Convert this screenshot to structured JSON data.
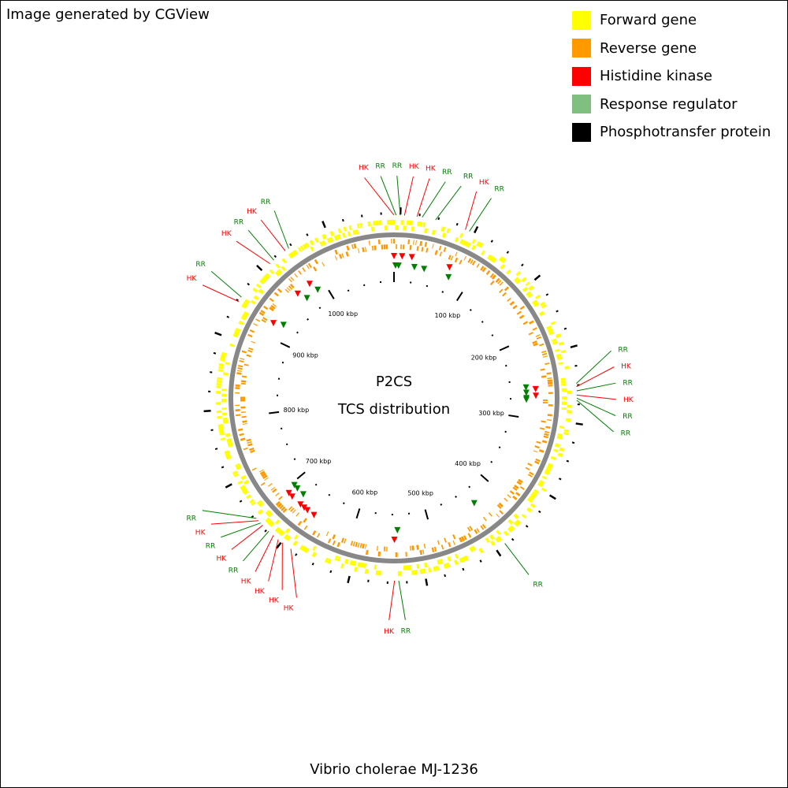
{
  "header": {
    "credit": "Image generated by CGView"
  },
  "legend": [
    {
      "label": "Forward gene",
      "color": "#ffff00"
    },
    {
      "label": "Reverse gene",
      "color": "#ff9900"
    },
    {
      "label": "Histidine kinase",
      "color": "#ff0000"
    },
    {
      "label": "Response regulator",
      "color": "#7fbf7f"
    },
    {
      "label": "Phosphotransfer protein",
      "color": "#000000"
    }
  ],
  "map": {
    "title_line1": "P2CS",
    "title_line2": "TCS distribution",
    "genome_length_kbp": 1095,
    "backbone_color": "#888888",
    "kbp_labels": [
      "100 kbp",
      "200 kbp",
      "300 kbp",
      "400 kbp",
      "500 kbp",
      "600 kbp",
      "700 kbp",
      "800 kbp",
      "900 kbp",
      "1000 kbp"
    ],
    "feature_colors": {
      "HK": "#ff0000",
      "RR": "#008000",
      "PT": "#000000"
    },
    "features": [
      {
        "type": "HK",
        "kbp": 0
      },
      {
        "type": "RR",
        "kbp": 2
      },
      {
        "type": "RR",
        "kbp": 6
      },
      {
        "type": "HK",
        "kbp": 10
      },
      {
        "type": "HK",
        "kbp": 22
      },
      {
        "type": "RR",
        "kbp": 27
      },
      {
        "type": "RR",
        "kbp": 40
      },
      {
        "type": "HK",
        "kbp": 70
      },
      {
        "type": "RR",
        "kbp": 74
      },
      {
        "type": "RR",
        "kbp": 260
      },
      {
        "type": "HK",
        "kbp": 263
      },
      {
        "type": "RR",
        "kbp": 267
      },
      {
        "type": "HK",
        "kbp": 271
      },
      {
        "type": "RR",
        "kbp": 274
      },
      {
        "type": "RR",
        "kbp": 276
      },
      {
        "type": "RR",
        "kbp": 434
      },
      {
        "type": "RR",
        "kbp": 543
      },
      {
        "type": "HK",
        "kbp": 547
      },
      {
        "type": "HK",
        "kbp": 652
      },
      {
        "type": "HK",
        "kbp": 662
      },
      {
        "type": "HK",
        "kbp": 667
      },
      {
        "type": "HK",
        "kbp": 673
      },
      {
        "type": "RR",
        "kbp": 679
      },
      {
        "type": "HK",
        "kbp": 687
      },
      {
        "type": "RR",
        "kbp": 690
      },
      {
        "type": "HK",
        "kbp": 693
      },
      {
        "type": "RR",
        "kbp": 696
      },
      {
        "type": "HK",
        "kbp": 918
      },
      {
        "type": "RR",
        "kbp": 923
      },
      {
        "type": "HK",
        "kbp": 965
      },
      {
        "type": "RR",
        "kbp": 970
      },
      {
        "type": "HK",
        "kbp": 984
      },
      {
        "type": "RR",
        "kbp": 988
      }
    ]
  },
  "footer": {
    "organism": "Vibrio cholerae MJ-1236"
  }
}
